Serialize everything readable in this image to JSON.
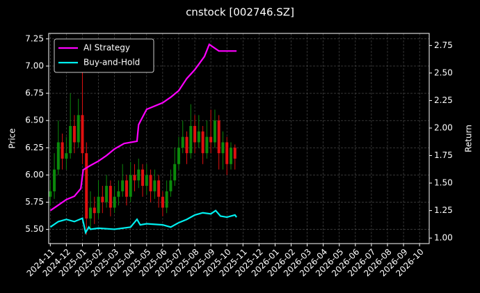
{
  "chart_data": {
    "type": "candlestick",
    "title": "cnstock [002746.SZ]",
    "ylabel": "Price",
    "y2label": "Return",
    "xlim": [
      -0.1,
      23.6
    ],
    "ylim": [
      5.37,
      7.3
    ],
    "y2lim": [
      0.95,
      2.86
    ],
    "xticks": [
      {
        "value": 0,
        "label": "2024-11"
      },
      {
        "value": 1,
        "label": "2024-12"
      },
      {
        "value": 2,
        "label": "2025-01"
      },
      {
        "value": 3,
        "label": "2025-02"
      },
      {
        "value": 4,
        "label": "2025-03"
      },
      {
        "value": 5,
        "label": "2025-04"
      },
      {
        "value": 6,
        "label": "2025-05"
      },
      {
        "value": 7,
        "label": "2025-06"
      },
      {
        "value": 8,
        "label": "2025-07"
      },
      {
        "value": 9,
        "label": "2025-08"
      },
      {
        "value": 10,
        "label": "2025-09"
      },
      {
        "value": 11,
        "label": "2025-10"
      },
      {
        "value": 12,
        "label": "2025-11"
      },
      {
        "value": 13,
        "label": "2025-12"
      },
      {
        "value": 14,
        "label": "2026-01"
      },
      {
        "value": 15,
        "label": "2026-02"
      },
      {
        "value": 16,
        "label": "2026-03"
      },
      {
        "value": 17,
        "label": "2026-04"
      },
      {
        "value": 18,
        "label": "2026-05"
      },
      {
        "value": 19,
        "label": "2026-06"
      },
      {
        "value": 20,
        "label": "2026-07"
      },
      {
        "value": 21,
        "label": "2026-08"
      },
      {
        "value": 22,
        "label": "2026-09"
      },
      {
        "value": 23,
        "label": "2026-10"
      }
    ],
    "yticks": [
      {
        "value": 5.5,
        "label": "5.50"
      },
      5.75,
      {
        "value": 6,
        "label": "6.00"
      },
      6.25,
      {
        "value": 6.5,
        "label": "6.50"
      },
      6.75,
      {
        "value": 7,
        "label": "7.00"
      },
      7.25
    ],
    "y2ticks": [
      {
        "value": 1,
        "label": "1.00"
      },
      1.25,
      {
        "value": 1.5,
        "label": "1.50"
      },
      1.75,
      {
        "value": 2,
        "label": "2.00"
      },
      2.25,
      {
        "value": 2.5,
        "label": "2.50"
      },
      2.75
    ],
    "grid": true,
    "legend": "upper left",
    "up_color": "#0b8a0b",
    "down_color": "#e01010",
    "candles": {
      "x": [
        0,
        0.25,
        0.5,
        0.75,
        1,
        1.25,
        1.5,
        1.75,
        2,
        2.25,
        2.5,
        2.75,
        3,
        3.25,
        3.5,
        3.75,
        4,
        4.25,
        4.5,
        4.75,
        5,
        5.25,
        5.5,
        5.75,
        6,
        6.25,
        6.5,
        6.75,
        7,
        7.25,
        7.5,
        7.75,
        8,
        8.25,
        8.5,
        8.75,
        9,
        9.25,
        9.5,
        9.75,
        10,
        10.25,
        10.5,
        10.75,
        11,
        11.25,
        11.5
      ],
      "open": [
        5.8,
        5.85,
        6.05,
        6.3,
        6.15,
        6.2,
        6.45,
        6.3,
        6.55,
        6.2,
        5.6,
        5.7,
        5.65,
        5.8,
        5.75,
        5.9,
        5.7,
        5.8,
        5.85,
        5.95,
        5.8,
        6.0,
        5.95,
        6.05,
        5.9,
        6.0,
        5.85,
        5.95,
        5.8,
        5.7,
        5.85,
        5.95,
        6.1,
        6.25,
        6.35,
        6.2,
        6.45,
        6.3,
        6.4,
        6.2,
        6.35,
        6.3,
        6.5,
        6.2,
        6.3,
        6.1,
        6.25
      ],
      "high": [
        5.95,
        6.2,
        6.5,
        6.38,
        6.35,
        6.75,
        6.55,
        6.7,
        7.05,
        6.3,
        5.85,
        5.8,
        5.95,
        5.9,
        6.0,
        5.95,
        5.9,
        5.95,
        6.1,
        6.0,
        6.12,
        6.1,
        6.15,
        6.1,
        6.1,
        6.05,
        6.05,
        6.0,
        5.85,
        5.95,
        6.05,
        6.25,
        6.35,
        6.5,
        6.4,
        6.65,
        6.55,
        6.55,
        6.45,
        6.5,
        6.6,
        6.6,
        6.55,
        6.4,
        6.35,
        6.3,
        6.28
      ],
      "low": [
        5.72,
        5.78,
        6.0,
        6.05,
        6.05,
        6.15,
        6.2,
        6.25,
        6.1,
        5.45,
        5.5,
        5.55,
        5.6,
        5.65,
        5.7,
        5.62,
        5.65,
        5.72,
        5.8,
        5.72,
        5.75,
        5.85,
        5.88,
        5.8,
        5.82,
        5.75,
        5.78,
        5.7,
        5.62,
        5.65,
        5.8,
        5.9,
        6.05,
        6.2,
        6.1,
        6.15,
        6.2,
        6.25,
        6.1,
        6.15,
        6.2,
        6.25,
        6.05,
        6.05,
        6.0,
        6.05,
        6.05
      ],
      "close": [
        5.85,
        6.05,
        6.3,
        6.15,
        6.2,
        6.45,
        6.3,
        6.55,
        6.2,
        5.6,
        5.7,
        5.65,
        5.8,
        5.75,
        5.9,
        5.7,
        5.8,
        5.85,
        5.95,
        5.8,
        6.0,
        5.95,
        6.05,
        5.9,
        6.0,
        5.85,
        5.95,
        5.8,
        5.7,
        5.85,
        5.95,
        6.1,
        6.25,
        6.35,
        6.2,
        6.45,
        6.3,
        6.4,
        6.2,
        6.35,
        6.3,
        6.5,
        6.2,
        6.3,
        6.1,
        6.25,
        6.15
      ]
    },
    "series": [
      {
        "name": "AI Strategy",
        "color": "#ff00ff",
        "axis": "y2",
        "x": [
          0,
          0.5,
          1,
          1.5,
          1.9,
          2.05,
          2.5,
          3,
          3.5,
          4,
          4.6,
          5.4,
          5.5,
          5.75,
          6,
          7,
          7.5,
          8,
          8.5,
          9,
          9.6,
          9.9,
          10.5,
          11,
          11.6
        ],
        "values": [
          1.25,
          1.3,
          1.35,
          1.38,
          1.45,
          1.62,
          1.66,
          1.7,
          1.75,
          1.81,
          1.86,
          1.88,
          2.03,
          2.1,
          2.17,
          2.23,
          2.28,
          2.34,
          2.45,
          2.53,
          2.65,
          2.76,
          2.7,
          2.7,
          2.7
        ]
      },
      {
        "name": "Buy-and-Hold",
        "color": "#00f0f0",
        "axis": "y2",
        "x": [
          0,
          0.5,
          1,
          1.5,
          2,
          2.2,
          2.4,
          2.5,
          3,
          4,
          5,
          5.4,
          5.6,
          6,
          7,
          7.5,
          8,
          8.5,
          9,
          9.5,
          10,
          10.3,
          10.6,
          11,
          11.5,
          11.6
        ],
        "values": [
          1.1,
          1.15,
          1.17,
          1.15,
          1.18,
          1.05,
          1.1,
          1.08,
          1.09,
          1.08,
          1.1,
          1.17,
          1.12,
          1.13,
          1.12,
          1.1,
          1.14,
          1.17,
          1.21,
          1.23,
          1.22,
          1.25,
          1.2,
          1.19,
          1.21,
          1.19
        ]
      }
    ]
  }
}
